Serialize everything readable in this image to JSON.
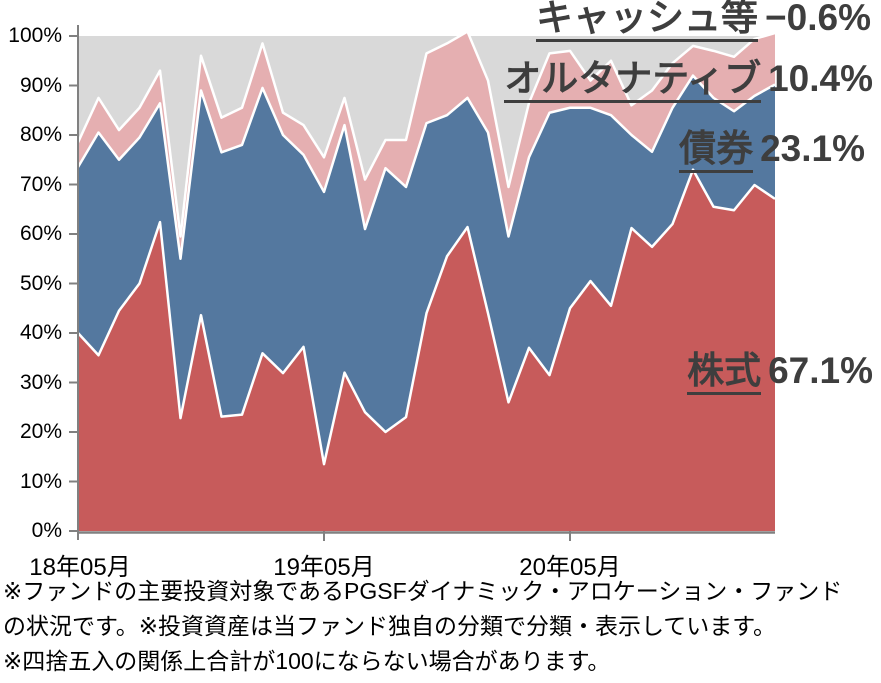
{
  "colors": {
    "stock_area": "#c75b5b",
    "bond_area": "#54789f",
    "alt_area": "#e5afb1",
    "cash_area": "#d9d9d9",
    "separator_line": "#ffffff",
    "axis_line": "#808080",
    "axis_text": "#000000",
    "annotation_text": "#3e3e3e"
  },
  "legend": {
    "cash": {
      "name": "キャッシュ等",
      "value": "−0.6%"
    },
    "alt": {
      "name": "オルタナティブ",
      "value": "10.4%"
    },
    "bond": {
      "name": "債券",
      "value": "23.1%"
    },
    "stock": {
      "name": "株式",
      "value": "67.1%"
    }
  },
  "axes": {
    "y_tick_labels": [
      "0%",
      "10%",
      "20%",
      "30%",
      "40%",
      "50%",
      "60%",
      "70%",
      "80%",
      "90%",
      "100%"
    ],
    "x_tick_labels": [
      "18年05月",
      "19年05月",
      "20年05月"
    ]
  },
  "footnotes": [
    "※ファンドの主要投資対象であるPGSFダイナミック・アロケーション・ファンド",
    "の状況です。※投資資産は当ファンド独自の分類で分類・表示しています。",
    "※四捨五入の関係上合計が100にならない場合があります。"
  ],
  "chart_data": {
    "type": "area",
    "stacked": true,
    "title": "",
    "xlabel": "",
    "ylabel": "",
    "ylim": [
      0,
      100
    ],
    "grid": false,
    "legend_position": "right-annotations",
    "x_axis_labeled_ticks": {
      "18年05月": 0,
      "19年05月": 12,
      "20年05月": 24
    },
    "months": [
      "2018-05",
      "2018-06",
      "2018-07",
      "2018-08",
      "2018-09",
      "2018-10",
      "2018-11",
      "2018-12",
      "2019-01",
      "2019-02",
      "2019-03",
      "2019-04",
      "2019-05",
      "2019-06",
      "2019-07",
      "2019-08",
      "2019-09",
      "2019-10",
      "2019-11",
      "2019-12",
      "2020-01",
      "2020-02",
      "2020-03",
      "2020-04",
      "2020-05",
      "2020-06",
      "2020-07",
      "2020-08",
      "2020-09",
      "2020-10",
      "2020-11",
      "2020-12",
      "2021-01",
      "2021-02",
      "2021-03"
    ],
    "series": [
      {
        "name": "株式",
        "color": "#c75b5b",
        "values": [
          40.0,
          35.5,
          44.5,
          50.0,
          62.4,
          22.8,
          43.6,
          23.1,
          23.5,
          35.9,
          31.9,
          37.2,
          13.5,
          32.0,
          24.0,
          20.0,
          23.0,
          44.0,
          55.5,
          61.4,
          44.0,
          26.0,
          37.0,
          31.5,
          45.0,
          50.5,
          45.5,
          61.2,
          57.4,
          62.0,
          73.0,
          65.5,
          64.8,
          69.9,
          67.1
        ]
      },
      {
        "name": "債券",
        "color": "#54789f",
        "values": [
          33.5,
          45.0,
          30.5,
          29.5,
          24.0,
          32.2,
          45.4,
          53.4,
          54.5,
          53.6,
          48.1,
          38.8,
          55.0,
          50.0,
          37.0,
          53.3,
          46.5,
          38.4,
          28.5,
          26.1,
          36.5,
          33.5,
          38.5,
          53.0,
          40.5,
          35.0,
          38.5,
          18.8,
          19.2,
          23.5,
          19.0,
          22.0,
          20.0,
          18.0,
          23.1
        ]
      },
      {
        "name": "オルタナティブ",
        "color": "#e5afb1",
        "values": [
          5.0,
          7.0,
          6.0,
          6.0,
          6.6,
          4.5,
          7.0,
          7.0,
          7.5,
          9.0,
          4.5,
          6.0,
          7.0,
          5.5,
          10.0,
          5.7,
          9.5,
          14.1,
          14.5,
          13.4,
          10.5,
          10.0,
          11.0,
          12.0,
          11.5,
          5.5,
          11.0,
          6.0,
          12.4,
          9.0,
          6.0,
          9.5,
          11.0,
          11.5,
          10.4
        ]
      },
      {
        "name": "キャッシュ等",
        "color": "#d9d9d9",
        "values": [
          21.5,
          12.5,
          19.0,
          14.5,
          7.0,
          40.5,
          4.0,
          16.5,
          14.5,
          1.5,
          15.5,
          18.0,
          24.5,
          12.5,
          29.0,
          21.0,
          21.0,
          3.5,
          1.5,
          -0.9,
          9.0,
          30.5,
          13.5,
          3.5,
          3.0,
          9.0,
          5.0,
          14.0,
          11.0,
          5.5,
          2.0,
          3.0,
          4.2,
          0.6,
          -0.6
        ]
      }
    ],
    "latest_values": {
      "株式": 67.1,
      "債券": 23.1,
      "オルタナティブ": 10.4,
      "キャッシュ等": -0.6
    }
  }
}
